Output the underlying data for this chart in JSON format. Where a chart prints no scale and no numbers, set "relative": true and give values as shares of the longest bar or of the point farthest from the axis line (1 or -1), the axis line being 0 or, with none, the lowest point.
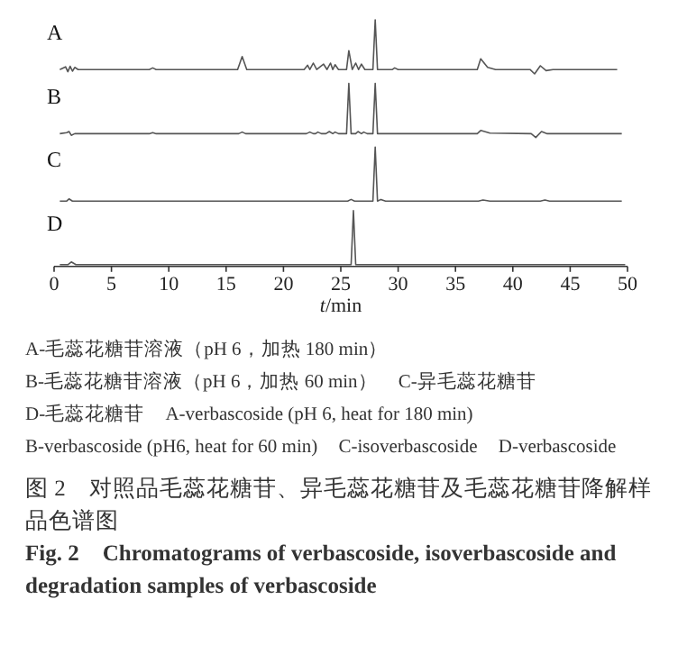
{
  "chart_data": [
    {
      "type": "line",
      "title": "A",
      "color": "#555555",
      "relative": true,
      "xlim": [
        0,
        50
      ],
      "tick_labels": false,
      "x": [
        0.5,
        1.0,
        1.2,
        1.4,
        1.6,
        1.8,
        2.1,
        8.3,
        8.6,
        8.9,
        16.0,
        16.4,
        16.8,
        21.8,
        22.1,
        22.3,
        22.6,
        22.9,
        23.5,
        23.8,
        24.1,
        24.3,
        24.5,
        24.8,
        25.5,
        25.7,
        26.0,
        26.3,
        26.55,
        26.8,
        27.1,
        27.8,
        28.0,
        28.2,
        29.5,
        29.7,
        30.0,
        36.9,
        37.2,
        37.8,
        38.5,
        41.5,
        41.9,
        42.4,
        42.9,
        43.5,
        49.1
      ],
      "values": [
        0.08,
        0.13,
        0.04,
        0.14,
        0.05,
        0.12,
        0.08,
        0.08,
        0.11,
        0.08,
        0.08,
        0.32,
        0.08,
        0.08,
        0.16,
        0.08,
        0.2,
        0.08,
        0.18,
        0.08,
        0.2,
        0.08,
        0.17,
        0.08,
        0.08,
        0.43,
        0.08,
        0.2,
        0.08,
        0.18,
        0.08,
        0.08,
        1,
        0.08,
        0.08,
        0.11,
        0.08,
        0.08,
        0.28,
        0.12,
        0.08,
        0.08,
        0,
        0.15,
        0.06,
        0.08,
        0.08
      ]
    },
    {
      "type": "line",
      "title": "B",
      "color": "#555555",
      "relative": true,
      "xlim": [
        0,
        50
      ],
      "tick_labels": false,
      "x": [
        0.5,
        1.1,
        1.3,
        1.5,
        1.8,
        8.3,
        8.6,
        8.9,
        16.1,
        16.4,
        16.7,
        22.0,
        22.3,
        22.6,
        22.8,
        23.0,
        23.3,
        23.7,
        24.0,
        24.3,
        24.5,
        24.8,
        25.5,
        25.7,
        25.9,
        26.3,
        26.5,
        26.8,
        27.0,
        27.3,
        27.8,
        28.0,
        28.2,
        36.9,
        37.2,
        38.0,
        41.6,
        42.0,
        42.5,
        43.0,
        49.5
      ],
      "values": [
        0.07,
        0.09,
        0.11,
        0.04,
        0.07,
        0.07,
        0.09,
        0.07,
        0.07,
        0.1,
        0.07,
        0.07,
        0.1,
        0.07,
        0.07,
        0.1,
        0.07,
        0.07,
        0.11,
        0.07,
        0.1,
        0.07,
        0.07,
        1,
        0.07,
        0.07,
        0.11,
        0.07,
        0.1,
        0.07,
        0.07,
        1,
        0.07,
        0.07,
        0.13,
        0.08,
        0.07,
        0,
        0.11,
        0.07,
        0.07
      ]
    },
    {
      "type": "line",
      "title": "C",
      "color": "#555555",
      "relative": true,
      "xlim": [
        0,
        50
      ],
      "tick_labels": false,
      "x": [
        0.5,
        1.1,
        1.3,
        1.6,
        25.6,
        25.9,
        26.2,
        27.8,
        28.0,
        28.2,
        28.5,
        28.9,
        37.0,
        37.4,
        38.0,
        42.4,
        42.8,
        43.2,
        49.5
      ],
      "values": [
        0,
        0,
        0.04,
        0,
        0,
        0.03,
        0,
        0,
        1,
        0,
        0.03,
        0,
        0,
        0.02,
        0,
        0,
        0.02,
        0,
        0
      ]
    },
    {
      "type": "line",
      "title": "D",
      "color": "#555555",
      "relative": true,
      "xlim": [
        0,
        50
      ],
      "tick_labels": "x",
      "xlabel": "*t*/min",
      "xticks": [
        0,
        5,
        10,
        15,
        20,
        25,
        30,
        35,
        40,
        45,
        50
      ],
      "x": [
        0.5,
        1.2,
        1.5,
        1.9,
        25.9,
        26.1,
        26.3,
        49.8
      ],
      "values": [
        0,
        0,
        0.05,
        0,
        0,
        1,
        0,
        0
      ]
    },
    {
      "type": "other",
      "title": "图 2　对照品毛蕊花糖苷、异毛蕊花糖苷及毛蕊花糖苷降解样品色谱图",
      "subtitle": "Fig. 2　Chromatograms of verbascoside, isoverbascoside and degradation samples of verbascoside",
      "annotations": [
        "A-毛蕊花糖苷溶液（pH 6，加热 180 min）",
        "B-毛蕊花糖苷溶液（pH 6，加热 60 min）",
        "C-异毛蕊花糖苷",
        "D-毛蕊花糖苷",
        "A-verbascoside (pH 6, heat for 180 min)",
        "B-verbascoside (pH6, heat for 60 min)",
        "C-isoverbascoside",
        "D-verbascoside"
      ]
    }
  ]
}
